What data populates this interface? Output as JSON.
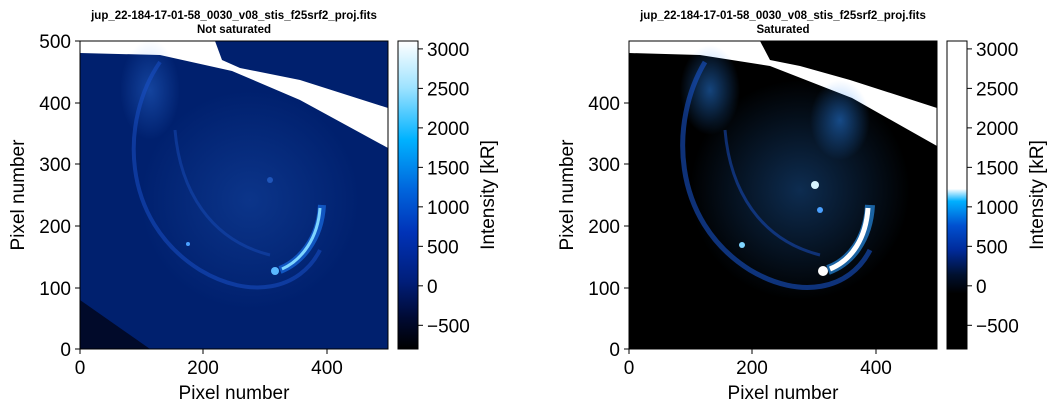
{
  "chart_data": [
    {
      "type": "heatmap",
      "title": "jup_22-184-17-01-58_0030_v08_stis_f25srf2_proj.fits",
      "subtitle": "Not saturated",
      "xlabel": "Pixel number",
      "ylabel": "Pixel number",
      "xlim": [
        0,
        500
      ],
      "ylim": [
        0,
        500
      ],
      "xticks": [
        "0",
        "200",
        "400"
      ],
      "yticks": [
        "0",
        "100",
        "200",
        "300",
        "400",
        "500"
      ],
      "colorbar": {
        "label": "Intensity [kR]",
        "range": [
          -800,
          3100
        ],
        "ticks": [
          "−500",
          "0",
          "500",
          "1000",
          "1500",
          "2000",
          "2500",
          "3000"
        ],
        "tick_values": [
          -500,
          0,
          500,
          1000,
          1500,
          2000,
          2500,
          3000
        ],
        "colormap": [
          "#000000",
          "#000a33",
          "#001e7a",
          "#0033b8",
          "#0066dd",
          "#00b2ff",
          "#9fe3ff",
          "#ffffff"
        ]
      },
      "saturated": false
    },
    {
      "type": "heatmap",
      "title": "jup_22-184-17-01-58_0030_v08_stis_f25srf2_proj.fits",
      "subtitle": "Saturated",
      "xlabel": "Pixel number",
      "ylabel": "Pixel number",
      "xlim": [
        0,
        500
      ],
      "ylim": [
        0,
        500
      ],
      "xticks": [
        "0",
        "200",
        "400"
      ],
      "yticks": [
        "0",
        "100",
        "200",
        "300",
        "400"
      ],
      "colorbar": {
        "label": "Intensity [kR]",
        "range": [
          -800,
          3100
        ],
        "ticks": [
          "−500",
          "0",
          "500",
          "1000",
          "1500",
          "2000",
          "2500",
          "3000"
        ],
        "tick_values": [
          -500,
          0,
          500,
          1000,
          1500,
          2000,
          2500,
          3000
        ],
        "colormap": [
          "#000000",
          "#000000",
          "#00102e",
          "#002a99",
          "#0050d0",
          "#00b0ff",
          "#ffffff",
          "#ffffff"
        ]
      },
      "saturated": true
    }
  ]
}
